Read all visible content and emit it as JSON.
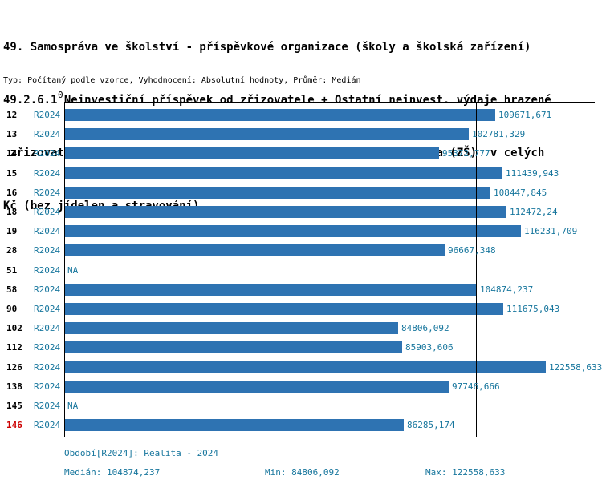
{
  "page": {
    "title_lines": [
      "49. Samospráva ve školství - příspěvkové organizace (školy a školská zařízení)",
      "49.2.6.1 Neinvestiční příspěvek od zřizovatele + Ostatní neinvest. výdaje hrazené",
      " zřizovatelem + Přímé náklady na vzdělávání (NIV) na jednoho žáka (ZŠ)  v celých",
      "Kč (bez jídelen a stravování)"
    ],
    "subtitle": "Typ: Počítaný podle vzorce, Vyhodnocení: Absolutní hodnoty, Průměr: Medián"
  },
  "chart_data": {
    "type": "bar",
    "orientation": "horizontal",
    "axis_zero_label": "0",
    "period": "R2024",
    "xlim": [
      0,
      135000
    ],
    "grid": false,
    "median_line": true,
    "median_value": 104874.237,
    "na_label": "NA",
    "highlighted_category": "146",
    "categories": [
      "12",
      "13",
      "14",
      "15",
      "16",
      "18",
      "19",
      "28",
      "51",
      "58",
      "90",
      "102",
      "112",
      "126",
      "138",
      "145",
      "146"
    ],
    "values": [
      109671.671,
      102781.329,
      95372.777,
      111439.943,
      108447.845,
      112472.24,
      116231.709,
      96667.348,
      null,
      104874.237,
      111675.043,
      84806.092,
      85903.606,
      122558.633,
      97746.666,
      null,
      86285.174
    ],
    "rows": [
      {
        "id": "12",
        "period": "R2024",
        "value": 109671.671,
        "label": "109671,671",
        "highlight": false
      },
      {
        "id": "13",
        "period": "R2024",
        "value": 102781.329,
        "label": "102781,329",
        "highlight": false
      },
      {
        "id": "14",
        "period": "R2024",
        "value": 95372.777,
        "label": "95372,777",
        "highlight": false
      },
      {
        "id": "15",
        "period": "R2024",
        "value": 111439.943,
        "label": "111439,943",
        "highlight": false
      },
      {
        "id": "16",
        "period": "R2024",
        "value": 108447.845,
        "label": "108447,845",
        "highlight": false
      },
      {
        "id": "18",
        "period": "R2024",
        "value": 112472.24,
        "label": "112472,24",
        "highlight": false
      },
      {
        "id": "19",
        "period": "R2024",
        "value": 116231.709,
        "label": "116231,709",
        "highlight": false
      },
      {
        "id": "28",
        "period": "R2024",
        "value": 96667.348,
        "label": "96667,348",
        "highlight": false
      },
      {
        "id": "51",
        "period": "R2024",
        "value": null,
        "label": "NA",
        "highlight": false
      },
      {
        "id": "58",
        "period": "R2024",
        "value": 104874.237,
        "label": "104874,237",
        "highlight": false
      },
      {
        "id": "90",
        "period": "R2024",
        "value": 111675.043,
        "label": "111675,043",
        "highlight": false
      },
      {
        "id": "102",
        "period": "R2024",
        "value": 84806.092,
        "label": "84806,092",
        "highlight": false
      },
      {
        "id": "112",
        "period": "R2024",
        "value": 85903.606,
        "label": "85903,606",
        "highlight": false
      },
      {
        "id": "126",
        "period": "R2024",
        "value": 122558.633,
        "label": "122558,633",
        "highlight": false
      },
      {
        "id": "138",
        "period": "R2024",
        "value": 97746.666,
        "label": "97746,666",
        "highlight": false
      },
      {
        "id": "145",
        "period": "R2024",
        "value": null,
        "label": "NA",
        "highlight": false
      },
      {
        "id": "146",
        "period": "R2024",
        "value": 86285.174,
        "label": "86285,174",
        "highlight": true
      }
    ],
    "colors": {
      "bar": "#2e73b2",
      "value_text": "#17769d",
      "highlight_text": "#cc0000",
      "axis": "#000000"
    }
  },
  "footer": {
    "period_line": "Období[R2024]: Realita - 2024",
    "median": "Medián: 104874,237",
    "min": "Min: 84806,092",
    "max": "Max: 122558,633"
  }
}
